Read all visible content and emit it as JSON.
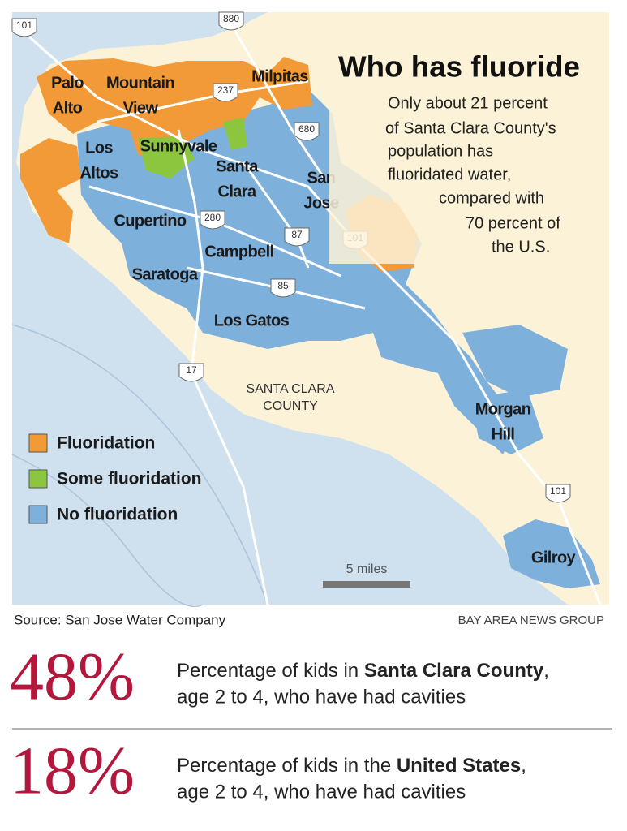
{
  "title": "Who has fluoride",
  "description": [
    "Only about 21 percent",
    "of Santa Clara County's",
    "population has",
    "fluoridated water,",
    "compared with",
    "70 percent of",
    "the U.S."
  ],
  "map": {
    "places": [
      [
        "Palo",
        "Alto"
      ],
      [
        "Mountain",
        "View"
      ],
      [
        "Milpitas"
      ],
      [
        "Los",
        "Altos"
      ],
      [
        "Sunnyvale"
      ],
      [
        "Santa",
        "Clara"
      ],
      [
        "San",
        "Jose"
      ],
      [
        "Cupertino"
      ],
      [
        "Campbell"
      ],
      [
        "Saratoga"
      ],
      [
        "Los Gatos"
      ],
      [
        "Morgan",
        "Hill"
      ],
      [
        "Gilroy"
      ]
    ],
    "highways": [
      "101",
      "880",
      "237",
      "680",
      "280",
      "87",
      "101",
      "85",
      "17",
      "101"
    ],
    "county_label": [
      "SANTA CLARA",
      "COUNTY"
    ],
    "scale": "5 miles"
  },
  "legend": [
    {
      "label": "Fluoridation",
      "color": "#f29a38"
    },
    {
      "label": "Some fluoridation",
      "color": "#8cc63f"
    },
    {
      "label": "No fluoridation",
      "color": "#7eb0dc"
    }
  ],
  "source": "Source: San Jose Water Company",
  "credit": "BAY AREA NEWS GROUP",
  "stats": [
    {
      "value": "48%",
      "text": "Percentage of kids in ",
      "emphasis": "Santa Clara County",
      "text_after": ",",
      "line2": "age 2 to 4, who have had cavities"
    },
    {
      "value": "18%",
      "text": "Percentage of kids in the ",
      "emphasis": "United States",
      "text_after": ",",
      "line2": "age 2 to 4, who have had cavities"
    }
  ]
}
